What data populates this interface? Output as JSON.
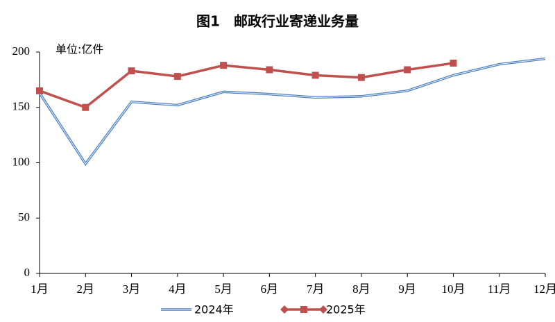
{
  "chart_data": {
    "type": "line",
    "title": "图1　邮政行业寄递业务量",
    "unit_label": "单位:亿件",
    "categories": [
      "1月",
      "2月",
      "3月",
      "4月",
      "5月",
      "6月",
      "7月",
      "8月",
      "9月",
      "10月",
      "11月",
      "12月"
    ],
    "series": [
      {
        "name": "2024年",
        "color": "#4a7ebf",
        "values": [
          163,
          99,
          155,
          152,
          164,
          162,
          159,
          160,
          165,
          179,
          189,
          194
        ]
      },
      {
        "name": "2025年",
        "color": "#c0504d",
        "values": [
          165,
          150,
          183,
          178,
          188,
          184,
          179,
          177,
          184,
          190,
          null,
          null
        ]
      }
    ],
    "ylim": [
      0,
      200
    ],
    "yticks": [
      0,
      50,
      100,
      150,
      200
    ],
    "grid": false,
    "legend": "bottom"
  }
}
